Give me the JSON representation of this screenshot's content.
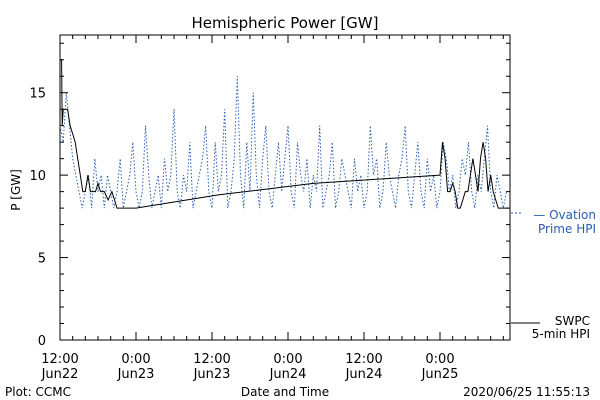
{
  "chart_data": {
    "type": "line",
    "title": "Hemispheric Power [GW]",
    "xlabel": "Date and Time",
    "ylabel": "P [GW]",
    "xlim_hours": [
      0,
      60
    ],
    "ylim": [
      0,
      18.5
    ],
    "y_ticks": [
      0,
      5,
      10,
      15
    ],
    "x_ticks": [
      {
        "hour": 0,
        "time": "12:00",
        "date": "Jun22"
      },
      {
        "hour": 12,
        "time": "0:00",
        "date": "Jun23"
      },
      {
        "hour": 24,
        "time": "12:00",
        "date": "Jun23"
      },
      {
        "hour": 36,
        "time": "0:00",
        "date": "Jun24"
      },
      {
        "hour": 48,
        "time": "12:00",
        "date": "Jun24"
      },
      {
        "hour": 60,
        "time": "0:00",
        "date": "Jun25"
      }
    ],
    "series": [
      {
        "name": "SWPC 5-min HPI",
        "style": "solid",
        "color": "#000000",
        "x": [
          0,
          0.25,
          0.35,
          0.5,
          0.8,
          1.2,
          1.6,
          2.0,
          2.4,
          2.8,
          3.2,
          3.6,
          4.0,
          4.4,
          4.8,
          5.2,
          5.6,
          6.0,
          6.4,
          7.0,
          7.6,
          8.2,
          8.6,
          9.0,
          9.4,
          9.8,
          10.2,
          10.6,
          11.0,
          12.0,
          25.0,
          40.0,
          60.0,
          60.4,
          60.8,
          61.2,
          61.6,
          62.0,
          62.4,
          62.8,
          63.2,
          63.6,
          64.0,
          64.4,
          64.8,
          65.2,
          65.6,
          66.0,
          66.4,
          66.8,
          67.2,
          67.6,
          68.0,
          68.4,
          68.8,
          69.2,
          69.6,
          70.0,
          70.4,
          70.8
        ],
        "y": [
          17,
          17,
          13,
          14,
          14,
          14,
          13,
          12.5,
          12,
          11,
          10,
          9,
          9,
          10,
          9,
          9,
          9,
          9.5,
          9,
          9,
          8.5,
          9,
          8.5,
          8,
          8,
          8,
          8,
          8,
          8,
          8,
          8.8,
          9.5,
          10,
          12,
          11,
          9,
          9,
          9.5,
          9,
          8,
          8,
          8.5,
          9,
          9,
          10,
          11,
          10,
          9,
          11,
          12,
          11,
          9,
          10,
          9,
          8.5,
          8,
          8,
          8,
          8,
          8
        ]
      },
      {
        "name": "Ovation Prime HPI",
        "style": "dotted",
        "color": "#2a5db0",
        "x": [
          0,
          0.5,
          1.0,
          1.5,
          2.0,
          2.5,
          3.0,
          3.5,
          4.0,
          4.5,
          5.0,
          5.5,
          6.0,
          6.5,
          7.0,
          7.5,
          8.0,
          8.5,
          9.0,
          9.5,
          10.0,
          10.5,
          11.0,
          11.5,
          12.0,
          12.5,
          13.0,
          13.5,
          14.0,
          14.5,
          15.0,
          15.5,
          16.0,
          16.5,
          17.0,
          17.5,
          18.0,
          18.5,
          19.0,
          19.5,
          20.0,
          20.5,
          21.0,
          21.5,
          22.0,
          22.5,
          23.0,
          23.5,
          24.0,
          24.5,
          25.0,
          25.5,
          26.0,
          26.5,
          27.0,
          27.5,
          28.0,
          28.5,
          29.0,
          29.5,
          30.0,
          30.5,
          31.0,
          31.5,
          32.0,
          32.5,
          33.0,
          33.5,
          34.0,
          34.5,
          35.0,
          35.5,
          36.0,
          36.5,
          37.0,
          37.5,
          38.0,
          38.5,
          39.0,
          39.5,
          40.0,
          40.5,
          41.0,
          41.5,
          42.0,
          42.5,
          43.0,
          43.5,
          44.0,
          44.5,
          45.0,
          45.5,
          46.0,
          46.5,
          47.0,
          47.5,
          48.0,
          48.5,
          49.0,
          49.5,
          50.0,
          50.5,
          51.0,
          51.5,
          52.0,
          52.5,
          53.0,
          53.5,
          54.0,
          54.5,
          55.0,
          55.5,
          56.0,
          56.5,
          57.0,
          57.5,
          58.0,
          58.5,
          59.0,
          59.5,
          60.0,
          60.5,
          61.0,
          61.5,
          62.0,
          62.5,
          63.0,
          63.5,
          64.0,
          64.5,
          65.0,
          65.5,
          66.0,
          66.5,
          67.0,
          67.5,
          68.0,
          68.5,
          69.0,
          69.5,
          70.0,
          70.5
        ],
        "y": [
          13,
          12,
          15,
          13,
          11,
          10,
          9,
          8,
          9,
          10,
          8,
          11,
          9,
          10,
          8,
          10,
          9,
          8,
          9,
          11,
          8,
          9,
          10,
          12,
          9,
          8,
          9,
          13,
          10,
          8,
          9,
          10,
          8,
          11,
          9,
          10,
          14,
          9,
          8,
          10,
          9,
          12,
          8,
          9,
          10,
          11,
          13,
          9,
          8,
          12,
          9,
          10,
          14,
          8,
          9,
          11,
          16,
          10,
          8,
          12,
          9,
          15,
          10,
          8,
          11,
          13,
          9,
          8,
          10,
          12,
          9,
          11,
          13,
          9,
          8,
          12,
          10,
          9,
          11,
          8,
          10,
          9,
          13,
          8,
          9,
          10,
          12,
          8,
          9,
          11,
          10,
          9,
          8,
          11,
          9,
          10,
          8,
          9,
          13,
          10,
          11,
          8,
          9,
          12,
          10,
          9,
          8,
          10,
          11,
          13,
          9,
          8,
          10,
          12,
          9,
          8,
          11,
          9,
          10,
          8,
          9,
          12,
          11,
          9,
          10,
          8,
          9,
          11,
          10,
          12,
          9,
          8,
          10,
          9,
          11,
          13,
          9,
          8,
          10,
          9,
          8,
          9
        ]
      }
    ],
    "legend": [
      {
        "lines": [
          "— Ovation",
          "Prime HPI"
        ],
        "color": "#2a5db0"
      },
      {
        "lines": [
          "SWPC",
          "5-min HPI"
        ],
        "color": "#000000"
      }
    ],
    "footer": {
      "left": "Plot: CCMC",
      "right": "2020/06/25 11:55:13"
    }
  }
}
